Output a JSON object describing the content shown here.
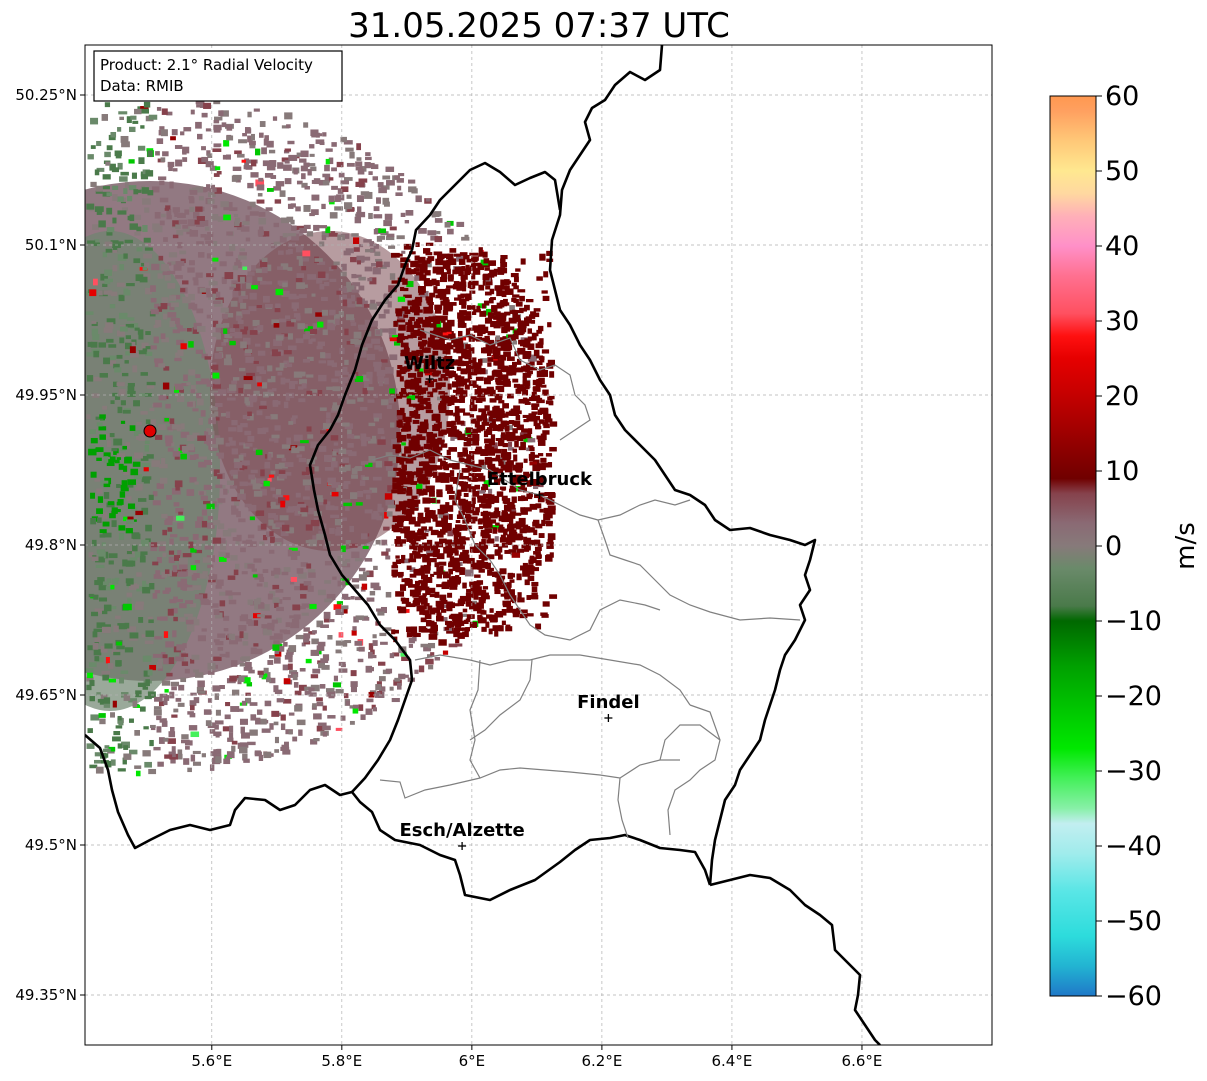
{
  "title": "31.05.2025 07:37 UTC",
  "info_box": {
    "product_line": "Product: 2.1° Radial Velocity",
    "data_line": "Data: RMIB"
  },
  "axes": {
    "lon_ticks": [
      {
        "value": 5.6,
        "label": "5.6°E"
      },
      {
        "value": 5.8,
        "label": "5.8°E"
      },
      {
        "value": 6.0,
        "label": "6°E"
      },
      {
        "value": 6.2,
        "label": "6.2°E"
      },
      {
        "value": 6.4,
        "label": "6.4°E"
      },
      {
        "value": 6.6,
        "label": "6.6°E"
      }
    ],
    "lat_ticks": [
      {
        "value": 50.25,
        "label": "50.25°N"
      },
      {
        "value": 50.1,
        "label": "50.1°N"
      },
      {
        "value": 49.95,
        "label": "49.95°N"
      },
      {
        "value": 49.8,
        "label": "49.8°N"
      },
      {
        "value": 49.65,
        "label": "49.65°N"
      },
      {
        "value": 49.5,
        "label": "49.5°N"
      },
      {
        "value": 49.35,
        "label": "49.35°N"
      }
    ],
    "lon_range": [
      5.405,
      6.8
    ],
    "lat_range": [
      49.3,
      50.3
    ],
    "grid": true
  },
  "radar_site": {
    "lon": 5.505,
    "lat": 49.914,
    "color": "#e00000"
  },
  "cities": [
    {
      "name": "Wiltz",
      "lon": 5.935,
      "lat": 49.966
    },
    {
      "name": "Ettelbruck",
      "lon": 6.104,
      "lat": 49.85
    },
    {
      "name": "Findel",
      "lon": 6.21,
      "lat": 49.627
    },
    {
      "name": "Esch/Alzette",
      "lon": 5.985,
      "lat": 49.499
    }
  ],
  "colorbar": {
    "label": "m/s",
    "ticks": [
      {
        "value": 60,
        "label": "60"
      },
      {
        "value": 50,
        "label": "50"
      },
      {
        "value": 40,
        "label": "40"
      },
      {
        "value": 30,
        "label": "30"
      },
      {
        "value": 20,
        "label": "20"
      },
      {
        "value": 10,
        "label": "10"
      },
      {
        "value": 0,
        "label": "0"
      },
      {
        "value": -10,
        "label": "−10"
      },
      {
        "value": -20,
        "label": "−20"
      },
      {
        "value": -30,
        "label": "−30"
      },
      {
        "value": -40,
        "label": "−40"
      },
      {
        "value": -50,
        "label": "−50"
      },
      {
        "value": -60,
        "label": "−60"
      }
    ],
    "range": [
      -60,
      60
    ],
    "stops": [
      {
        "v": -60,
        "color": "#1f78c8"
      },
      {
        "v": -56,
        "color": "#22b4d2"
      },
      {
        "v": -52,
        "color": "#2ddcdc"
      },
      {
        "v": -46,
        "color": "#5ae6e6"
      },
      {
        "v": -41,
        "color": "#a0ecec"
      },
      {
        "v": -37,
        "color": "#c2eef0"
      },
      {
        "v": -35,
        "color": "#88f0a8"
      },
      {
        "v": -31,
        "color": "#44f05a"
      },
      {
        "v": -27,
        "color": "#00e800"
      },
      {
        "v": -22,
        "color": "#00c800"
      },
      {
        "v": -16,
        "color": "#00a000"
      },
      {
        "v": -10,
        "color": "#006800"
      },
      {
        "v": -8,
        "color": "#4a7a4a"
      },
      {
        "v": -3,
        "color": "#6a8a6a"
      },
      {
        "v": 0,
        "color": "#877a7a"
      },
      {
        "v": 3,
        "color": "#8a6a74"
      },
      {
        "v": 7,
        "color": "#86424c"
      },
      {
        "v": 9,
        "color": "#700000"
      },
      {
        "v": 14,
        "color": "#960000"
      },
      {
        "v": 20,
        "color": "#c40000"
      },
      {
        "v": 25,
        "color": "#e60000"
      },
      {
        "v": 28,
        "color": "#ff1010"
      },
      {
        "v": 31,
        "color": "#ff5060"
      },
      {
        "v": 36,
        "color": "#ff7090"
      },
      {
        "v": 40,
        "color": "#ff90c8"
      },
      {
        "v": 44,
        "color": "#ffb0b8"
      },
      {
        "v": 47,
        "color": "#ffd8a0"
      },
      {
        "v": 50,
        "color": "#ffe890"
      },
      {
        "v": 54,
        "color": "#ffc878"
      },
      {
        "v": 58,
        "color": "#ffa060"
      },
      {
        "v": 60,
        "color": "#ff9850"
      }
    ]
  }
}
